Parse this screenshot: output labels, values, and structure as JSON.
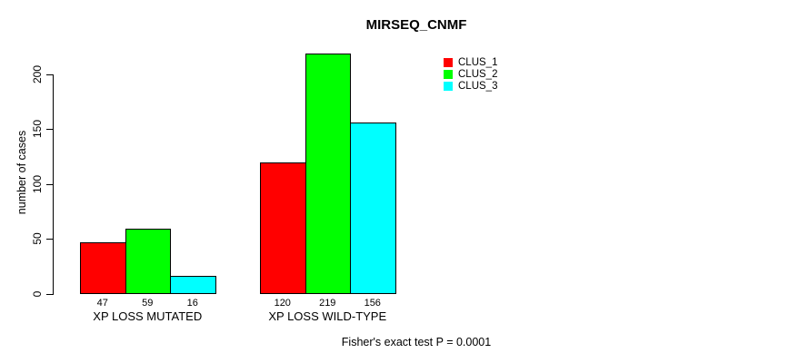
{
  "chart_data": {
    "type": "bar",
    "title": "MIRSEQ_CNMF",
    "ylabel": "number of cases",
    "xlabel": "",
    "categories": [
      "XP LOSS MUTATED",
      "XP LOSS WILD-TYPE"
    ],
    "series": [
      {
        "name": "CLUS_1",
        "color": "#ff0000",
        "values": [
          47,
          120
        ]
      },
      {
        "name": "CLUS_2",
        "color": "#00ff00",
        "values": [
          59,
          219
        ]
      },
      {
        "name": "CLUS_3",
        "color": "#00ffff",
        "values": [
          16,
          156
        ]
      }
    ],
    "value_labels": [
      [
        47,
        59,
        16
      ],
      [
        120,
        219,
        156
      ]
    ],
    "yticks": [
      0,
      50,
      100,
      150,
      200
    ],
    "ylim": [
      0,
      200
    ],
    "grid": false,
    "legend_position": "top-right",
    "bar_border_color": "#000000",
    "caption": "Fisher's exact test P = 0.0001"
  }
}
